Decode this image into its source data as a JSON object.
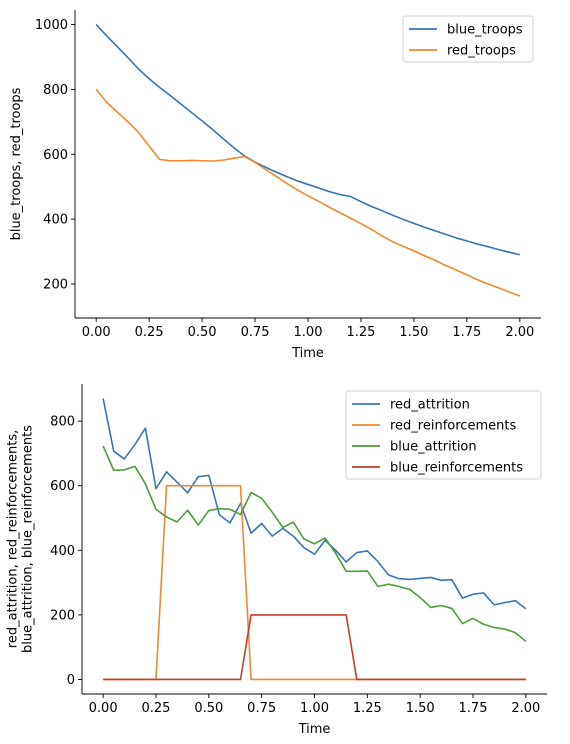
{
  "chart_data": [
    {
      "type": "line",
      "xlabel": "Time",
      "ylabel": "blue_troops, red_troops",
      "xlim": [
        -0.1,
        2.1
      ],
      "ylim": [
        95,
        1045
      ],
      "xticks": [
        0.0,
        0.25,
        0.5,
        0.75,
        1.0,
        1.25,
        1.5,
        1.75,
        2.0
      ],
      "xtick_labels": [
        "0.00",
        "0.25",
        "0.50",
        "0.75",
        "1.00",
        "1.25",
        "1.50",
        "1.75",
        "2.00"
      ],
      "yticks": [
        200,
        400,
        600,
        800,
        1000
      ],
      "ytick_labels": [
        "200",
        "400",
        "600",
        "800",
        "1000"
      ],
      "legend_position": "top-right",
      "grid": false,
      "x": [
        0.0,
        0.05,
        0.1,
        0.15,
        0.2,
        0.25,
        0.3,
        0.35,
        0.4,
        0.45,
        0.5,
        0.55,
        0.6,
        0.65,
        0.7,
        0.75,
        0.8,
        0.85,
        0.9,
        0.95,
        1.0,
        1.05,
        1.1,
        1.15,
        1.2,
        1.25,
        1.3,
        1.35,
        1.4,
        1.45,
        1.5,
        1.55,
        1.6,
        1.65,
        1.7,
        1.75,
        1.8,
        1.85,
        1.9,
        1.95,
        2.0
      ],
      "series": [
        {
          "name": "blue_troops",
          "color": "#3a75b0",
          "values": [
            1000,
            965,
            932,
            898,
            863,
            833,
            806,
            781,
            755,
            729,
            703,
            676,
            648,
            620,
            595,
            576,
            560,
            545,
            531,
            518,
            507,
            496,
            485,
            476,
            470,
            454,
            439,
            426,
            412,
            399,
            387,
            375,
            364,
            353,
            342,
            333,
            323,
            315,
            306,
            298,
            290
          ]
        },
        {
          "name": "red_troops",
          "color": "#ee8a2f",
          "values": [
            800,
            760,
            730,
            700,
            668,
            625,
            584,
            580,
            580,
            581,
            580,
            579,
            582,
            588,
            593,
            575,
            553,
            532,
            510,
            490,
            472,
            455,
            437,
            420,
            403,
            386,
            368,
            348,
            330,
            316,
            302,
            287,
            273,
            257,
            243,
            228,
            213,
            200,
            188,
            175,
            163
          ]
        }
      ]
    },
    {
      "type": "line",
      "xlabel": "Time",
      "ylabel": "red_attrition, red_reinforcements,\nblue_attrition, blue_reinforcements",
      "ylabel_lines": [
        "red_attrition, red_reinforcements,",
        "blue_attrition, blue_reinforcements"
      ],
      "xlim": [
        -0.1,
        2.1
      ],
      "ylim": [
        -45,
        915
      ],
      "xticks": [
        0.0,
        0.25,
        0.5,
        0.75,
        1.0,
        1.25,
        1.5,
        1.75,
        2.0
      ],
      "xtick_labels": [
        "0.00",
        "0.25",
        "0.50",
        "0.75",
        "1.00",
        "1.25",
        "1.50",
        "1.75",
        "2.00"
      ],
      "yticks": [
        0,
        200,
        400,
        600,
        800
      ],
      "ytick_labels": [
        "0",
        "200",
        "400",
        "600",
        "800"
      ],
      "legend_position": "top-right",
      "grid": false,
      "x": [
        0.0,
        0.05,
        0.1,
        0.15,
        0.2,
        0.25,
        0.3,
        0.35,
        0.4,
        0.45,
        0.5,
        0.55,
        0.6,
        0.65,
        0.7,
        0.75,
        0.8,
        0.85,
        0.9,
        0.95,
        1.0,
        1.05,
        1.1,
        1.15,
        1.2,
        1.25,
        1.3,
        1.35,
        1.4,
        1.45,
        1.5,
        1.55,
        1.6,
        1.65,
        1.7,
        1.75,
        1.8,
        1.85,
        1.9,
        1.95,
        2.0
      ],
      "series": [
        {
          "name": "red_attrition",
          "color": "#3a75b0",
          "values": [
            870,
            707,
            683,
            727,
            778,
            591,
            643,
            611,
            578,
            628,
            632,
            510,
            485,
            545,
            453,
            483,
            444,
            468,
            444,
            408,
            388,
            431,
            400,
            364,
            393,
            398,
            365,
            324,
            312,
            310,
            313,
            316,
            307,
            309,
            252,
            264,
            268,
            231,
            238,
            244,
            219
          ]
        },
        {
          "name": "red_reinforcements",
          "color": "#ee8a2f",
          "values": [
            0,
            0,
            0,
            0,
            0,
            0,
            600,
            600,
            600,
            600,
            600,
            600,
            600,
            600,
            0,
            0,
            0,
            0,
            0,
            0,
            0,
            0,
            0,
            0,
            0,
            0,
            0,
            0,
            0,
            0,
            0,
            0,
            0,
            0,
            0,
            0,
            0,
            0,
            0,
            0,
            0
          ]
        },
        {
          "name": "blue_attrition",
          "color": "#4e9c3a",
          "values": [
            723,
            648,
            649,
            660,
            606,
            527,
            503,
            488,
            524,
            478,
            523,
            529,
            527,
            511,
            579,
            561,
            518,
            471,
            487,
            435,
            420,
            438,
            391,
            335,
            335,
            336,
            288,
            295,
            288,
            279,
            254,
            223,
            229,
            220,
            173,
            189,
            171,
            161,
            156,
            145,
            118
          ]
        },
        {
          "name": "blue_reinforcements",
          "color": "#c63d2f",
          "values": [
            0,
            0,
            0,
            0,
            0,
            0,
            0,
            0,
            0,
            0,
            0,
            0,
            0,
            0,
            200,
            200,
            200,
            200,
            200,
            200,
            200,
            200,
            200,
            200,
            0,
            0,
            0,
            0,
            0,
            0,
            0,
            0,
            0,
            0,
            0,
            0,
            0,
            0,
            0,
            0,
            0
          ]
        }
      ]
    }
  ]
}
